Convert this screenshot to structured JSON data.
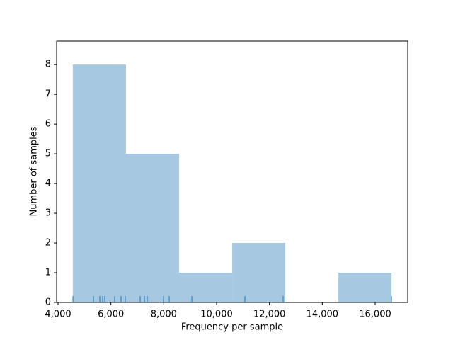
{
  "chart_data": {
    "type": "histogram",
    "xlabel": "Frequency per sample",
    "ylabel": "Number of samples",
    "bins": [
      4560,
      6570,
      8580,
      10590,
      12600,
      14610,
      16620
    ],
    "values": [
      8,
      5,
      1,
      2,
      0,
      1
    ],
    "color": "#a6c8e0",
    "rug": [
      4563,
      5339,
      5581,
      5688,
      5768,
      6143,
      6384,
      6545,
      7107,
      7268,
      7375,
      7991,
      8205,
      9062,
      11072,
      12518,
      16617
    ],
    "rug_color": "#1f77b4",
    "xlim": [
      3946,
      17232
    ],
    "ylim": [
      0,
      8.79
    ],
    "xticks": [
      {
        "value": 4000,
        "label": "4,000"
      },
      {
        "value": 6000,
        "label": "6,000"
      },
      {
        "value": 8000,
        "label": "8,000"
      },
      {
        "value": 10000,
        "label": "10,000"
      },
      {
        "value": 12000,
        "label": "12,000"
      },
      {
        "value": 14000,
        "label": "14,000"
      },
      {
        "value": 16000,
        "label": "16,000"
      }
    ],
    "yticks": [
      0,
      1,
      2,
      3,
      4,
      5,
      6,
      7,
      8
    ],
    "grid": false
  }
}
